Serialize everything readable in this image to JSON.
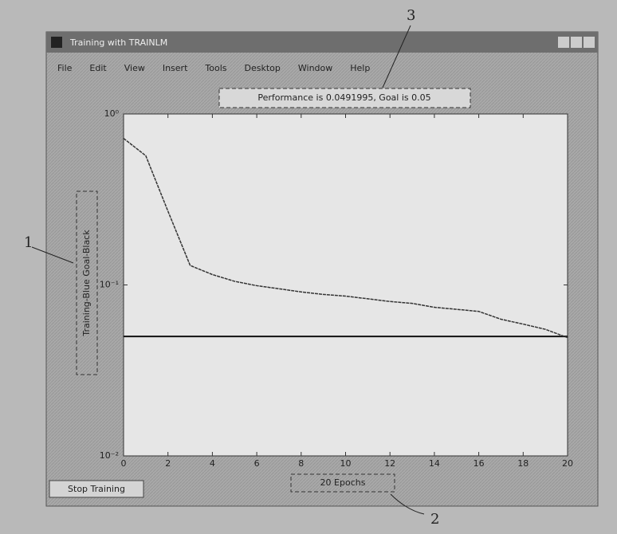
{
  "window": {
    "title": "Training with TRAINLM",
    "menu": [
      "File",
      "Edit",
      "View",
      "Insert",
      "Tools",
      "Desktop",
      "Window",
      "Help"
    ],
    "button": "Stop Training"
  },
  "annotations": [
    "1",
    "2",
    "3"
  ],
  "chart_data": {
    "type": "line",
    "title": "Performance is 0.0491995, Goal is 0.05",
    "xlabel": "20 Epochs",
    "ylabel": "Training-Blue  Goal-Black",
    "x": [
      0,
      1,
      2,
      3,
      4,
      5,
      6,
      7,
      8,
      9,
      10,
      11,
      12,
      13,
      14,
      15,
      16,
      17,
      18,
      19,
      20
    ],
    "values": [
      0.72,
      0.57,
      0.27,
      0.13,
      0.115,
      0.105,
      0.099,
      0.095,
      0.091,
      0.088,
      0.086,
      0.083,
      0.08,
      0.078,
      0.074,
      0.072,
      0.07,
      0.063,
      0.059,
      0.055,
      0.0492
    ],
    "color": "#333333",
    "goal": 0.05,
    "goal_color": "#111111",
    "xlim": [
      0,
      20
    ],
    "xticks": [
      0,
      2,
      4,
      6,
      8,
      10,
      12,
      14,
      16,
      18,
      20
    ],
    "ylim": [
      0.01,
      1
    ],
    "log_y": true,
    "yticks": [
      {
        "value": 0.01,
        "label": "10⁻²"
      },
      {
        "value": 0.1,
        "label": "10⁻¹"
      },
      {
        "value": 1,
        "label": "10⁰"
      }
    ]
  }
}
